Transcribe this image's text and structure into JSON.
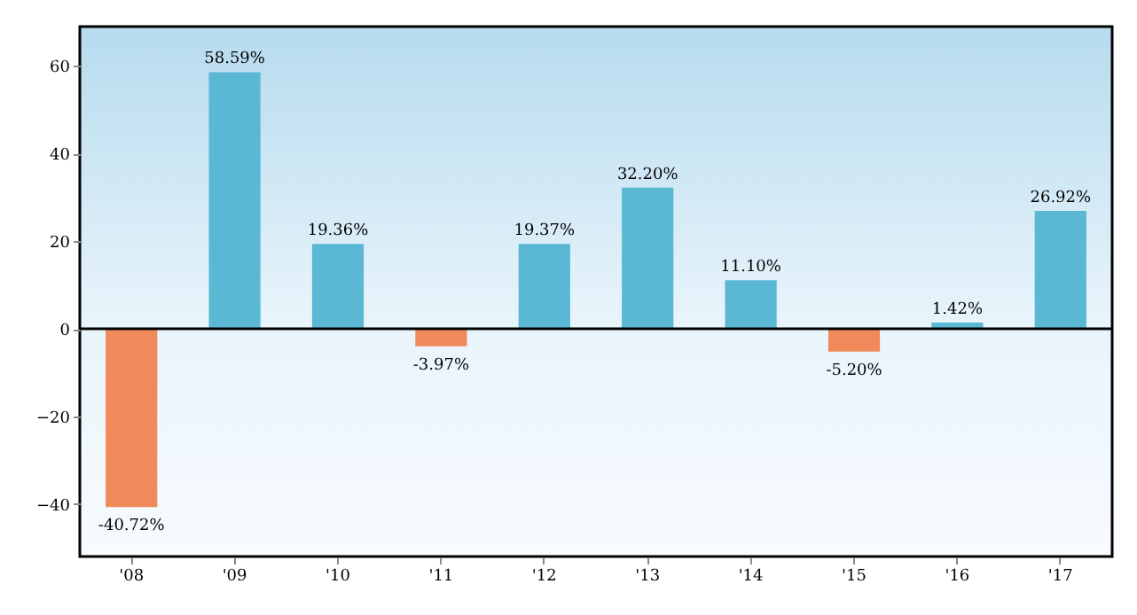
{
  "chart_data": {
    "type": "bar",
    "categories": [
      "'08",
      "'09",
      "'10",
      "'11",
      "'12",
      "'13",
      "'14",
      "'15",
      "'16",
      "'17"
    ],
    "values": [
      -40.72,
      58.59,
      19.36,
      -3.97,
      19.37,
      32.2,
      11.1,
      -5.2,
      1.42,
      26.92
    ],
    "colors": [
      "#f08a5a",
      "#5ab8d4",
      "#5ab8d4",
      "#f08a5a",
      "#5ab8d4",
      "#5ab8d4",
      "#5ab8d4",
      "#f08a5a",
      "#5ab8d4",
      "#5ab8d4"
    ],
    "value_labels": [
      "-40.72%",
      "58.59%",
      "19.36%",
      "-3.97%",
      "19.37%",
      "32.20%",
      "11.10%",
      "-5.20%",
      "1.42%",
      "26.92%"
    ],
    "ylim": [
      -52,
      69
    ],
    "yticks": [
      {
        "value": -40,
        "label": "−40"
      },
      {
        "value": -20,
        "label": "−20"
      },
      0,
      20,
      40,
      60
    ],
    "ref_lines": [
      {
        "axis": "y",
        "value": 0,
        "color": "#000000"
      }
    ],
    "grid": false
  }
}
